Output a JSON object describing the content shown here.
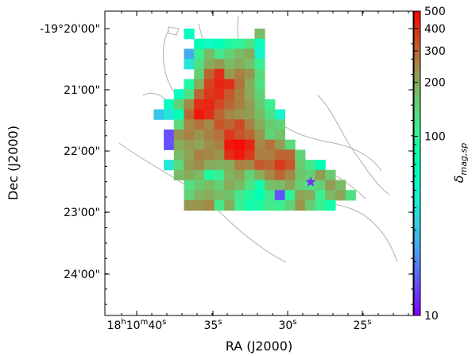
{
  "chart_data": {
    "type": "heatmap",
    "xlabel": "RA (J2000)",
    "ylabel": "Dec (J2000)",
    "x_ticks": [
      {
        "label_main": "18",
        "label_parts": [
          "h",
          "10",
          "m",
          "40",
          "s"
        ],
        "value_s": 40
      },
      {
        "label_main": "35",
        "label_parts": [
          "s"
        ],
        "value_s": 35
      },
      {
        "label_main": "30",
        "label_parts": [
          "s"
        ],
        "value_s": 30
      },
      {
        "label_main": "25",
        "label_parts": [
          "s"
        ],
        "value_s": 25
      }
    ],
    "y_ticks": [
      {
        "label": "-19°20'00\"",
        "value_arcmin": 0
      },
      {
        "label": "21'00\"",
        "value_arcmin": 1
      },
      {
        "label": "22'00\"",
        "value_arcmin": 2
      },
      {
        "label": "23'00\"",
        "value_arcmin": 3
      },
      {
        "label": "24'00\"",
        "value_arcmin": 4
      }
    ],
    "colorbar": {
      "scale": "log",
      "min": 10,
      "max": 500,
      "ticks": [
        "500",
        "400",
        "300",
        "200",
        "100",
        "10"
      ],
      "tick_values": [
        500,
        400,
        300,
        200,
        100,
        10
      ],
      "label_base": "δ",
      "label_sub": "mag,sp",
      "colormap": "rainbow"
    },
    "grid": {
      "cols": 18,
      "rows": 21,
      "rows_values": [
        "..........1.......",
        "...................",
        "...........1.......",
        "........o.l........",
        "..........a.........",
        ".....c.........",
        "..................",
        "...............",
        "................",
        "..............",
        "..............",
        "......................",
        "....................",
        "..........................",
        ".......................",
        "...................",
        "....................",
        "....................",
        "...................",
        "....................",
        "...................."
      ],
      "rows_data": [
        [
          null,
          null,
          null,
          null,
          null,
          null,
          null,
          null,
          null,
          null,
          null,
          null,
          null,
          null,
          null,
          null,
          null,
          null
        ],
        [
          null,
          null,
          null,
          null,
          null,
          null,
          null,
          null,
          null,
          null,
          null,
          null,
          null,
          null,
          null,
          null,
          null,
          null
        ],
        [
          null,
          null,
          null,
          null,
          null,
          null,
          null,
          null,
          null,
          null,
          null,
          null,
          null,
          null,
          null,
          null,
          null,
          null
        ]
      ],
      "cells": [
        {
          "r": 0,
          "c": 5,
          "v": 60
        },
        {
          "r": 0,
          "c": 12,
          "v": 180
        },
        {
          "r": 1,
          "c": 6,
          "v": 70
        },
        {
          "r": 1,
          "c": 7,
          "v": 55
        },
        {
          "r": 1,
          "c": 8,
          "v": 70
        },
        {
          "r": 1,
          "c": 9,
          "v": 90
        },
        {
          "r": 1,
          "c": 10,
          "v": 100
        },
        {
          "r": 1,
          "c": 11,
          "v": 130
        },
        {
          "r": 1,
          "c": 12,
          "v": 60
        },
        {
          "r": 2,
          "c": 5,
          "v": 25
        },
        {
          "r": 2,
          "c": 6,
          "v": 110
        },
        {
          "r": 2,
          "c": 7,
          "v": 180
        },
        {
          "r": 2,
          "c": 8,
          "v": 120
        },
        {
          "r": 2,
          "c": 9,
          "v": 150
        },
        {
          "r": 2,
          "c": 10,
          "v": 180
        },
        {
          "r": 2,
          "c": 11,
          "v": 200
        },
        {
          "r": 2,
          "c": 12,
          "v": 50
        },
        {
          "r": 3,
          "c": 5,
          "v": 40
        },
        {
          "r": 3,
          "c": 6,
          "v": 130
        },
        {
          "r": 3,
          "c": 7,
          "v": 200
        },
        {
          "r": 3,
          "c": 8,
          "v": 220
        },
        {
          "r": 3,
          "c": 9,
          "v": 180
        },
        {
          "r": 3,
          "c": 10,
          "v": 200
        },
        {
          "r": 3,
          "c": 11,
          "v": 170
        },
        {
          "r": 3,
          "c": 12,
          "v": 110
        },
        {
          "r": 4,
          "c": 6,
          "v": 150
        },
        {
          "r": 4,
          "c": 7,
          "v": 300
        },
        {
          "r": 4,
          "c": 8,
          "v": 400
        },
        {
          "r": 4,
          "c": 9,
          "v": 220
        },
        {
          "r": 4,
          "c": 10,
          "v": 260
        },
        {
          "r": 4,
          "c": 11,
          "v": 230
        },
        {
          "r": 4,
          "c": 12,
          "v": 140
        },
        {
          "r": 5,
          "c": 5,
          "v": 90
        },
        {
          "r": 5,
          "c": 6,
          "v": 200
        },
        {
          "r": 5,
          "c": 7,
          "v": 360
        },
        {
          "r": 5,
          "c": 8,
          "v": 420
        },
        {
          "r": 5,
          "c": 9,
          "v": 400
        },
        {
          "r": 5,
          "c": 10,
          "v": 280
        },
        {
          "r": 5,
          "c": 11,
          "v": 200
        },
        {
          "r": 5,
          "c": 12,
          "v": 130
        },
        {
          "r": 6,
          "c": 4,
          "v": 60
        },
        {
          "r": 6,
          "c": 5,
          "v": 130
        },
        {
          "r": 6,
          "c": 6,
          "v": 300
        },
        {
          "r": 6,
          "c": 7,
          "v": 380
        },
        {
          "r": 6,
          "c": 8,
          "v": 400
        },
        {
          "r": 6,
          "c": 9,
          "v": 320
        },
        {
          "r": 6,
          "c": 10,
          "v": 260
        },
        {
          "r": 6,
          "c": 11,
          "v": 200
        },
        {
          "r": 6,
          "c": 12,
          "v": 150
        },
        {
          "r": 7,
          "c": 3,
          "v": 60
        },
        {
          "r": 7,
          "c": 4,
          "v": 150
        },
        {
          "r": 7,
          "c": 5,
          "v": 250
        },
        {
          "r": 7,
          "c": 6,
          "v": 400
        },
        {
          "r": 7,
          "c": 7,
          "v": 420
        },
        {
          "r": 7,
          "c": 8,
          "v": 350
        },
        {
          "r": 7,
          "c": 9,
          "v": 300
        },
        {
          "r": 7,
          "c": 10,
          "v": 260
        },
        {
          "r": 7,
          "c": 11,
          "v": 220
        },
        {
          "r": 7,
          "c": 12,
          "v": 160
        },
        {
          "r": 7,
          "c": 13,
          "v": 110
        },
        {
          "r": 8,
          "c": 2,
          "v": 30
        },
        {
          "r": 8,
          "c": 3,
          "v": 40
        },
        {
          "r": 8,
          "c": 4,
          "v": 70
        },
        {
          "r": 8,
          "c": 5,
          "v": 300
        },
        {
          "r": 8,
          "c": 6,
          "v": 450
        },
        {
          "r": 8,
          "c": 7,
          "v": 400
        },
        {
          "r": 8,
          "c": 8,
          "v": 300
        },
        {
          "r": 8,
          "c": 9,
          "v": 250
        },
        {
          "r": 8,
          "c": 10,
          "v": 230
        },
        {
          "r": 8,
          "c": 11,
          "v": 220
        },
        {
          "r": 8,
          "c": 12,
          "v": 180
        },
        {
          "r": 8,
          "c": 13,
          "v": 130
        },
        {
          "r": 8,
          "c": 14,
          "v": 50
        },
        {
          "r": 9,
          "c": 4,
          "v": 140
        },
        {
          "r": 9,
          "c": 5,
          "v": 250
        },
        {
          "r": 9,
          "c": 6,
          "v": 280
        },
        {
          "r": 9,
          "c": 7,
          "v": 250
        },
        {
          "r": 9,
          "c": 8,
          "v": 330
        },
        {
          "r": 9,
          "c": 9,
          "v": 300
        },
        {
          "r": 9,
          "c": 10,
          "v": 350
        },
        {
          "r": 9,
          "c": 11,
          "v": 260
        },
        {
          "r": 9,
          "c": 12,
          "v": 200
        },
        {
          "r": 9,
          "c": 13,
          "v": 160
        },
        {
          "r": 9,
          "c": 14,
          "v": 150
        },
        {
          "r": 10,
          "c": 3,
          "v": 15
        },
        {
          "r": 10,
          "c": 4,
          "v": 230
        },
        {
          "r": 10,
          "c": 5,
          "v": 260
        },
        {
          "r": 10,
          "c": 6,
          "v": 230
        },
        {
          "r": 10,
          "c": 7,
          "v": 260
        },
        {
          "r": 10,
          "c": 8,
          "v": 280
        },
        {
          "r": 10,
          "c": 9,
          "v": 380
        },
        {
          "r": 10,
          "c": 10,
          "v": 330
        },
        {
          "r": 10,
          "c": 11,
          "v": 300
        },
        {
          "r": 10,
          "c": 12,
          "v": 230
        },
        {
          "r": 10,
          "c": 13,
          "v": 150
        },
        {
          "r": 10,
          "c": 14,
          "v": 170
        },
        {
          "r": 11,
          "c": 3,
          "v": 15
        },
        {
          "r": 11,
          "c": 4,
          "v": 200
        },
        {
          "r": 11,
          "c": 5,
          "v": 220
        },
        {
          "r": 11,
          "c": 6,
          "v": 210
        },
        {
          "r": 11,
          "c": 7,
          "v": 240
        },
        {
          "r": 11,
          "c": 8,
          "v": 260
        },
        {
          "r": 11,
          "c": 9,
          "v": 450
        },
        {
          "r": 11,
          "c": 10,
          "v": 470
        },
        {
          "r": 11,
          "c": 11,
          "v": 420
        },
        {
          "r": 11,
          "c": 12,
          "v": 250
        },
        {
          "r": 11,
          "c": 13,
          "v": 280
        },
        {
          "r": 11,
          "c": 14,
          "v": 220
        },
        {
          "r": 11,
          "c": 15,
          "v": 140
        },
        {
          "r": 12,
          "c": 4,
          "v": 180
        },
        {
          "r": 12,
          "c": 5,
          "v": 210
        },
        {
          "r": 12,
          "c": 6,
          "v": 260
        },
        {
          "r": 12,
          "c": 7,
          "v": 250
        },
        {
          "r": 12,
          "c": 8,
          "v": 230
        },
        {
          "r": 12,
          "c": 9,
          "v": 400
        },
        {
          "r": 12,
          "c": 10,
          "v": 450
        },
        {
          "r": 12,
          "c": 11,
          "v": 380
        },
        {
          "r": 12,
          "c": 12,
          "v": 260
        },
        {
          "r": 12,
          "c": 13,
          "v": 260
        },
        {
          "r": 12,
          "c": 14,
          "v": 300
        },
        {
          "r": 12,
          "c": 15,
          "v": 300
        },
        {
          "r": 12,
          "c": 16,
          "v": 150
        },
        {
          "r": 13,
          "c": 3,
          "v": 40
        },
        {
          "r": 13,
          "c": 4,
          "v": 140
        },
        {
          "r": 13,
          "c": 5,
          "v": 220
        },
        {
          "r": 13,
          "c": 6,
          "v": 240
        },
        {
          "r": 13,
          "c": 7,
          "v": 200
        },
        {
          "r": 13,
          "c": 8,
          "v": 190
        },
        {
          "r": 13,
          "c": 9,
          "v": 200
        },
        {
          "r": 13,
          "c": 10,
          "v": 260
        },
        {
          "r": 13,
          "c": 11,
          "v": 250
        },
        {
          "r": 13,
          "c": 12,
          "v": 320
        },
        {
          "r": 13,
          "c": 13,
          "v": 300
        },
        {
          "r": 13,
          "c": 14,
          "v": 380
        },
        {
          "r": 13,
          "c": 15,
          "v": 330
        },
        {
          "r": 13,
          "c": 16,
          "v": 160
        },
        {
          "r": 13,
          "c": 17,
          "v": 120
        },
        {
          "r": 13,
          "c": 18,
          "v": 70
        },
        {
          "r": 14,
          "c": 4,
          "v": 180
        },
        {
          "r": 14,
          "c": 5,
          "v": 200
        },
        {
          "r": 14,
          "c": 6,
          "v": 180
        },
        {
          "r": 14,
          "c": 7,
          "v": 90
        },
        {
          "r": 14,
          "c": 8,
          "v": 110
        },
        {
          "r": 14,
          "c": 9,
          "v": 190
        },
        {
          "r": 14,
          "c": 10,
          "v": 210
        },
        {
          "r": 14,
          "c": 11,
          "v": 150
        },
        {
          "r": 14,
          "c": 12,
          "v": 200
        },
        {
          "r": 14,
          "c": 13,
          "v": 250
        },
        {
          "r": 14,
          "c": 14,
          "v": 300
        },
        {
          "r": 14,
          "c": 15,
          "v": 250
        },
        {
          "r": 14,
          "c": 16,
          "v": 170
        },
        {
          "r": 14,
          "c": 17,
          "v": 150
        },
        {
          "r": 14,
          "c": 18,
          "v": 220
        },
        {
          "r": 14,
          "c": 19,
          "v": 160
        },
        {
          "r": 15,
          "c": 5,
          "v": 130
        },
        {
          "r": 15,
          "c": 6,
          "v": 160
        },
        {
          "r": 15,
          "c": 7,
          "v": 180
        },
        {
          "r": 15,
          "c": 8,
          "v": 150
        },
        {
          "r": 15,
          "c": 9,
          "v": 200
        },
        {
          "r": 15,
          "c": 10,
          "v": 180
        },
        {
          "r": 15,
          "c": 11,
          "v": 130
        },
        {
          "r": 15,
          "c": 12,
          "v": 80
        },
        {
          "r": 15,
          "c": 13,
          "v": 170
        },
        {
          "r": 15,
          "c": 14,
          "v": 180
        },
        {
          "r": 15,
          "c": 15,
          "v": 210
        },
        {
          "r": 15,
          "c": 16,
          "v": 150
        },
        {
          "r": 15,
          "c": 17,
          "v": 130
        },
        {
          "r": 15,
          "c": 18,
          "v": 150
        },
        {
          "r": 15,
          "c": 19,
          "v": 220
        },
        {
          "r": 15,
          "c": 20,
          "v": 180
        },
        {
          "r": 16,
          "c": 5,
          "v": 150
        },
        {
          "r": 16,
          "c": 6,
          "v": 190
        },
        {
          "r": 16,
          "c": 7,
          "v": 200
        },
        {
          "r": 16,
          "c": 8,
          "v": 180
        },
        {
          "r": 16,
          "c": 9,
          "v": 170
        },
        {
          "r": 16,
          "c": 10,
          "v": 120
        },
        {
          "r": 16,
          "c": 11,
          "v": 90
        },
        {
          "r": 16,
          "c": 12,
          "v": 70
        },
        {
          "r": 16,
          "c": 13,
          "v": 120
        },
        {
          "r": 16,
          "c": 14,
          "v": 15
        },
        {
          "r": 16,
          "c": 15,
          "v": 100
        },
        {
          "r": 16,
          "c": 16,
          "v": 210
        },
        {
          "r": 16,
          "c": 17,
          "v": 200
        },
        {
          "r": 16,
          "c": 18,
          "v": 110
        },
        {
          "r": 16,
          "c": 19,
          "v": 180
        },
        {
          "r": 16,
          "c": 20,
          "v": 210
        },
        {
          "r": 16,
          "c": 21,
          "v": 130
        },
        {
          "r": 17,
          "c": 5,
          "v": 230
        },
        {
          "r": 17,
          "c": 6,
          "v": 230
        },
        {
          "r": 17,
          "c": 7,
          "v": 250
        },
        {
          "r": 17,
          "c": 8,
          "v": 120
        },
        {
          "r": 17,
          "c": 9,
          "v": 200
        },
        {
          "r": 17,
          "c": 10,
          "v": 110
        },
        {
          "r": 17,
          "c": 11,
          "v": 80
        },
        {
          "r": 17,
          "c": 12,
          "v": 90
        },
        {
          "r": 17,
          "c": 13,
          "v": 120
        },
        {
          "r": 17,
          "c": 14,
          "v": 110
        },
        {
          "r": 17,
          "c": 15,
          "v": 150
        },
        {
          "r": 17,
          "c": 16,
          "v": 230
        },
        {
          "r": 17,
          "c": 17,
          "v": 160
        },
        {
          "r": 17,
          "c": 18,
          "v": 110
        },
        {
          "r": 17,
          "c": 19,
          "v": 80
        }
      ]
    },
    "contours": "grey",
    "marker": {
      "symbol": "star",
      "color": "#7a2ff0"
    },
    "grid_lines": false
  }
}
